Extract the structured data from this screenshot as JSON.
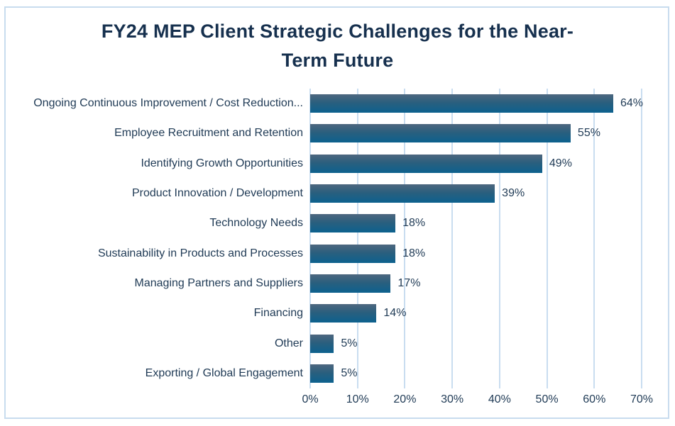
{
  "title": {
    "full": "FY24 MEP Client Strategic Challenges for the Near-Term Future",
    "line1": "FY24 MEP Client Strategic Challenges for the Near-",
    "line2": "Term Future"
  },
  "chart_data": {
    "type": "bar",
    "orientation": "horizontal",
    "title": "FY24 MEP Client Strategic Challenges for the Near-Term Future",
    "categories": [
      "Ongoing Continuous Improvement / Cost Reduction...",
      "Employee Recruitment and Retention",
      "Identifying Growth Opportunities",
      "Product Innovation / Development",
      "Technology Needs",
      "Sustainability in Products and Processes",
      "Managing Partners and Suppliers",
      "Financing",
      "Other",
      "Exporting / Global Engagement"
    ],
    "values": [
      64,
      55,
      49,
      39,
      18,
      18,
      17,
      14,
      5,
      5
    ],
    "value_labels": [
      "64%",
      "55%",
      "49%",
      "39%",
      "18%",
      "18%",
      "17%",
      "14%",
      "5%",
      "5%"
    ],
    "x_ticks": [
      "0%",
      "10%",
      "20%",
      "30%",
      "40%",
      "50%",
      "60%",
      "70%"
    ],
    "x_tick_values": [
      0,
      10,
      20,
      30,
      40,
      50,
      60,
      70
    ],
    "xlim": [
      0,
      70
    ],
    "xlabel": "",
    "ylabel": "",
    "grid": "vertical",
    "legend": "none",
    "colors": {
      "bar_gradient_top": "#4d677f",
      "bar_gradient_bottom": "#0c618e",
      "gridline": "#c9ddf0",
      "frame_border": "#c8dcee",
      "label_text": "#1f3a55",
      "title_text": "#16304e",
      "background": "#ffffff"
    }
  }
}
